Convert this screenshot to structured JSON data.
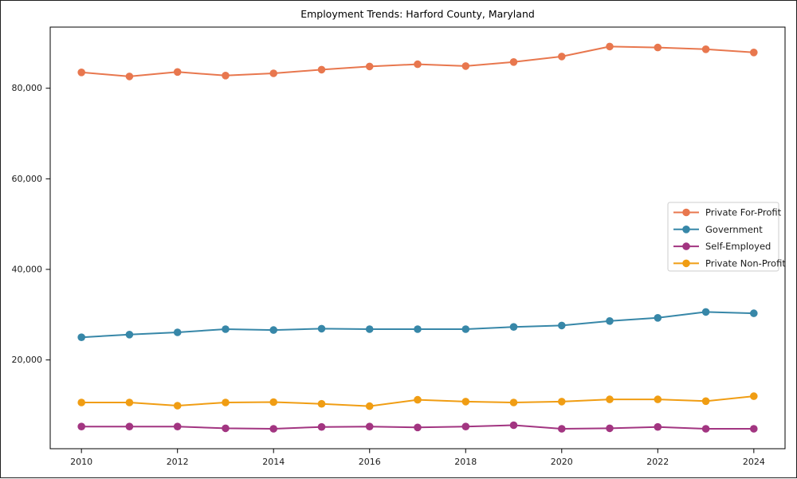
{
  "window": {
    "background": "#ffffff",
    "frame_color": "#000000",
    "legend_border_color": "#cccccc"
  },
  "chart_data": {
    "type": "line",
    "title": "Employment Trends: Harford County, Maryland",
    "xlabel": "",
    "ylabel": "",
    "grid": false,
    "legend_position": "center-right",
    "x": [
      2010,
      2011,
      2012,
      2013,
      2014,
      2015,
      2016,
      2017,
      2018,
      2019,
      2020,
      2021,
      2022,
      2023,
      2024
    ],
    "xlim": [
      2009.35,
      2024.65
    ],
    "ylim": [
      400,
      93500
    ],
    "xtick_values": [
      2010,
      2012,
      2014,
      2016,
      2018,
      2020,
      2022,
      2024
    ],
    "xtick_labels": [
      "2010",
      "2012",
      "2014",
      "2016",
      "2018",
      "2020",
      "2022",
      "2024"
    ],
    "ytick_values": [
      20000,
      40000,
      60000,
      80000
    ],
    "ytick_labels": [
      "20,000",
      "40,000",
      "60,000",
      "80,000"
    ],
    "series": [
      {
        "name": "Private For-Profit",
        "color": "#e8774e",
        "values": [
          83500,
          82600,
          83600,
          82800,
          83300,
          84100,
          84800,
          85300,
          84900,
          85800,
          87000,
          89200,
          89000,
          88600,
          87900
        ]
      },
      {
        "name": "Government",
        "color": "#3787a8",
        "values": [
          25000,
          25600,
          26100,
          26800,
          26600,
          26900,
          26800,
          26800,
          26800,
          27300,
          27600,
          28600,
          29300,
          30600,
          30300
        ]
      },
      {
        "name": "Self-Employed",
        "color": "#a23581",
        "values": [
          5300,
          5300,
          5300,
          4900,
          4800,
          5200,
          5300,
          5100,
          5300,
          5600,
          4800,
          4900,
          5200,
          4800,
          4800
        ]
      },
      {
        "name": "Private Non-Profit",
        "color": "#f09d13",
        "values": [
          10600,
          10600,
          9900,
          10600,
          10700,
          10300,
          9800,
          11200,
          10800,
          10600,
          10800,
          11300,
          11300,
          10900,
          12000
        ]
      }
    ]
  }
}
